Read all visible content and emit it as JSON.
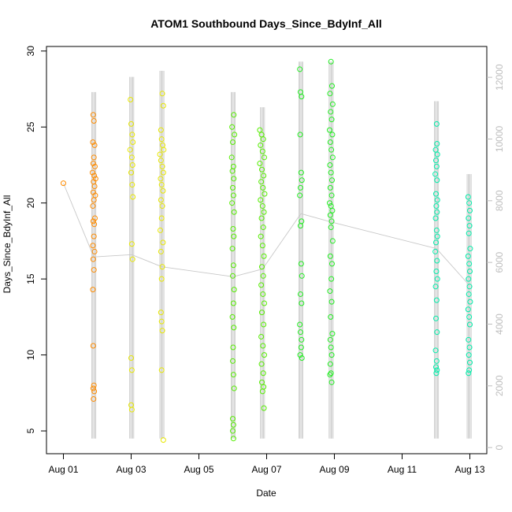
{
  "chart_data": {
    "type": "scatter",
    "title": "ATOM1 Southbound Days_Since_BdyInf_All",
    "xlabel": "Date",
    "ylabel": "Days_Since_BdyInf_All",
    "x_ticks": [
      "Aug 01",
      "Aug 03",
      "Aug 05",
      "Aug 07",
      "Aug 09",
      "Aug 11",
      "Aug 13"
    ],
    "xlim": [
      "2023-07-31T12:00",
      "2023-08-13T12:00"
    ],
    "ylim": [
      3.5,
      30.3
    ],
    "y_ticks": [
      5,
      10,
      15,
      20,
      25,
      30
    ],
    "y2lim": [
      -200,
      13000
    ],
    "y2_ticks": [
      0,
      2000,
      4000,
      6000,
      8000,
      10000,
      12000
    ],
    "y2_color": "#bebebe",
    "line_color": "#c8c8c8",
    "grid": false,
    "series": [
      {
        "color": "#ff8c00",
        "x": "2023-08-01",
        "points": [
          [
            0.0,
            21.3
          ],
          [
            0.88,
            25.8
          ],
          [
            0.9,
            25.4
          ],
          [
            0.87,
            24.0
          ],
          [
            0.92,
            23.8
          ],
          [
            0.9,
            23.0
          ],
          [
            0.88,
            22.6
          ],
          [
            0.93,
            22.4
          ],
          [
            0.86,
            22.0
          ],
          [
            0.91,
            21.8
          ],
          [
            0.95,
            21.6
          ],
          [
            0.89,
            21.4
          ],
          [
            0.92,
            21.1
          ],
          [
            0.88,
            20.7
          ],
          [
            0.94,
            20.5
          ],
          [
            0.9,
            20.2
          ],
          [
            0.87,
            19.8
          ],
          [
            0.93,
            19.0
          ],
          [
            0.88,
            18.8
          ],
          [
            0.91,
            18.6
          ],
          [
            0.9,
            17.8
          ],
          [
            0.87,
            17.2
          ],
          [
            0.92,
            16.8
          ],
          [
            0.88,
            16.3
          ],
          [
            0.9,
            15.6
          ],
          [
            0.87,
            14.3
          ],
          [
            0.88,
            10.6
          ],
          [
            0.9,
            8.0
          ],
          [
            0.88,
            7.8
          ],
          [
            0.91,
            7.6
          ],
          [
            0.89,
            7.1
          ]
        ]
      },
      {
        "color": "#e8e800",
        "x": "2023-08-03",
        "points": [
          [
            -0.02,
            26.8
          ],
          [
            0.0,
            25.2
          ],
          [
            0.03,
            24.5
          ],
          [
            0.05,
            24.0
          ],
          [
            -0.03,
            23.5
          ],
          [
            0.02,
            23.0
          ],
          [
            0.04,
            22.5
          ],
          [
            0.0,
            22.0
          ],
          [
            0.03,
            21.2
          ],
          [
            0.05,
            20.4
          ],
          [
            0.02,
            17.3
          ],
          [
            0.04,
            16.3
          ],
          [
            0.0,
            9.8
          ],
          [
            0.02,
            9.0
          ],
          [
            0.0,
            6.7
          ],
          [
            0.02,
            6.4
          ],
          [
            0.92,
            27.2
          ],
          [
            0.95,
            26.4
          ],
          [
            0.88,
            24.8
          ],
          [
            0.9,
            24.2
          ],
          [
            0.93,
            23.8
          ],
          [
            0.96,
            23.5
          ],
          [
            0.85,
            23.2
          ],
          [
            0.88,
            22.8
          ],
          [
            0.92,
            22.4
          ],
          [
            0.95,
            22.0
          ],
          [
            0.87,
            21.6
          ],
          [
            0.9,
            21.2
          ],
          [
            0.94,
            20.8
          ],
          [
            0.88,
            20.2
          ],
          [
            0.92,
            19.8
          ],
          [
            0.9,
            19.0
          ],
          [
            0.86,
            18.2
          ],
          [
            0.94,
            17.4
          ],
          [
            0.88,
            16.8
          ],
          [
            0.92,
            15.8
          ],
          [
            0.9,
            15.0
          ],
          [
            0.88,
            12.8
          ],
          [
            0.9,
            12.2
          ],
          [
            0.92,
            11.6
          ],
          [
            0.9,
            9.0
          ],
          [
            0.95,
            4.4
          ]
        ]
      },
      {
        "color": "#55ee00",
        "x": "2023-08-06",
        "points": [
          [
            -0.02,
            25.0
          ],
          [
            0.03,
            25.8
          ],
          [
            0.05,
            24.5
          ],
          [
            0.0,
            24.0
          ],
          [
            -0.03,
            23.0
          ],
          [
            0.02,
            22.4
          ],
          [
            -0.01,
            22.1
          ],
          [
            0.03,
            21.6
          ],
          [
            0.0,
            21.0
          ],
          [
            0.02,
            20.5
          ],
          [
            -0.02,
            20.0
          ],
          [
            0.04,
            19.4
          ],
          [
            0.01,
            18.3
          ],
          [
            0.03,
            17.8
          ],
          [
            -0.01,
            17.0
          ],
          [
            0.02,
            15.9
          ],
          [
            0.0,
            15.2
          ],
          [
            0.04,
            14.3
          ],
          [
            0.02,
            13.4
          ],
          [
            -0.01,
            12.5
          ],
          [
            0.03,
            11.8
          ],
          [
            0.01,
            10.5
          ],
          [
            0.0,
            9.6
          ],
          [
            0.02,
            8.7
          ],
          [
            0.04,
            7.8
          ],
          [
            0.0,
            5.8
          ],
          [
            0.02,
            5.4
          ],
          [
            0.0,
            5.0
          ],
          [
            0.02,
            4.5
          ],
          [
            0.8,
            24.8
          ],
          [
            0.85,
            24.5
          ],
          [
            0.9,
            24.2
          ],
          [
            0.82,
            23.8
          ],
          [
            0.88,
            23.4
          ],
          [
            0.93,
            23.0
          ],
          [
            0.8,
            22.6
          ],
          [
            0.86,
            22.2
          ],
          [
            0.91,
            21.8
          ],
          [
            0.84,
            21.4
          ],
          [
            0.89,
            21.0
          ],
          [
            0.94,
            20.6
          ],
          [
            0.82,
            20.2
          ],
          [
            0.88,
            19.8
          ],
          [
            0.92,
            19.4
          ],
          [
            0.85,
            19.0
          ],
          [
            0.9,
            18.4
          ],
          [
            0.83,
            17.8
          ],
          [
            0.88,
            17.2
          ],
          [
            0.92,
            16.5
          ],
          [
            0.86,
            15.8
          ],
          [
            0.9,
            15.2
          ],
          [
            0.84,
            14.6
          ],
          [
            0.89,
            14.0
          ],
          [
            0.93,
            13.4
          ],
          [
            0.86,
            12.8
          ],
          [
            0.91,
            12.0
          ],
          [
            0.84,
            11.2
          ],
          [
            0.89,
            10.6
          ],
          [
            0.93,
            10.0
          ],
          [
            0.85,
            9.4
          ],
          [
            0.9,
            8.8
          ],
          [
            0.86,
            8.2
          ],
          [
            0.91,
            7.9
          ],
          [
            0.88,
            7.6
          ],
          [
            0.92,
            6.5
          ]
        ]
      },
      {
        "color": "#22ee22",
        "x": "2023-08-08",
        "points": [
          [
            -0.02,
            28.8
          ],
          [
            0.0,
            27.3
          ],
          [
            0.03,
            27.0
          ],
          [
            -0.01,
            24.5
          ],
          [
            0.02,
            22.0
          ],
          [
            0.04,
            21.5
          ],
          [
            0.0,
            21.0
          ],
          [
            -0.02,
            20.5
          ],
          [
            0.03,
            18.8
          ],
          [
            0.0,
            18.5
          ],
          [
            0.02,
            16.0
          ],
          [
            0.04,
            15.2
          ],
          [
            0.0,
            14.0
          ],
          [
            0.03,
            13.4
          ],
          [
            -0.02,
            12.0
          ],
          [
            0.0,
            11.5
          ],
          [
            0.03,
            11.0
          ],
          [
            0.02,
            10.5
          ],
          [
            -0.01,
            10.0
          ],
          [
            0.04,
            9.8
          ],
          [
            0.9,
            29.3
          ],
          [
            0.93,
            27.7
          ],
          [
            0.87,
            27.2
          ],
          [
            0.95,
            26.5
          ],
          [
            0.89,
            26.0
          ],
          [
            0.92,
            25.5
          ],
          [
            0.86,
            24.8
          ],
          [
            0.94,
            24.5
          ],
          [
            0.88,
            24.0
          ],
          [
            0.91,
            23.5
          ],
          [
            0.95,
            23.0
          ],
          [
            0.87,
            22.5
          ],
          [
            0.9,
            22.0
          ],
          [
            0.93,
            21.5
          ],
          [
            0.88,
            21.0
          ],
          [
            0.92,
            20.5
          ],
          [
            0.86,
            20.0
          ],
          [
            0.9,
            19.8
          ],
          [
            0.94,
            19.5
          ],
          [
            0.88,
            19.2
          ],
          [
            0.92,
            18.8
          ],
          [
            0.9,
            18.4
          ],
          [
            0.95,
            17.5
          ],
          [
            0.88,
            16.5
          ],
          [
            0.93,
            16.0
          ],
          [
            0.91,
            15.0
          ],
          [
            0.87,
            14.2
          ],
          [
            0.92,
            13.5
          ],
          [
            0.89,
            12.5
          ],
          [
            0.94,
            11.4
          ],
          [
            0.88,
            11.0
          ],
          [
            0.9,
            10.5
          ],
          [
            0.92,
            10.0
          ],
          [
            0.88,
            9.4
          ],
          [
            0.9,
            8.8
          ],
          [
            0.87,
            8.7
          ],
          [
            0.92,
            8.2
          ]
        ]
      },
      {
        "color": "#00eeaa",
        "x": "2023-08-12",
        "points": [
          [
            0.02,
            25.2
          ],
          [
            0.03,
            23.9
          ],
          [
            -0.01,
            23.5
          ],
          [
            0.04,
            23.2
          ],
          [
            0.0,
            22.8
          ],
          [
            0.02,
            22.4
          ],
          [
            -0.02,
            21.9
          ],
          [
            0.03,
            21.5
          ],
          [
            0.0,
            20.6
          ],
          [
            0.04,
            20.2
          ],
          [
            0.01,
            19.8
          ],
          [
            0.03,
            19.4
          ],
          [
            -0.01,
            19.0
          ],
          [
            0.02,
            18.2
          ],
          [
            0.04,
            17.8
          ],
          [
            0.0,
            17.4
          ],
          [
            -0.02,
            16.8
          ],
          [
            0.03,
            16.2
          ],
          [
            0.01,
            15.5
          ],
          [
            0.04,
            15.0
          ],
          [
            -0.01,
            14.5
          ],
          [
            0.02,
            13.6
          ],
          [
            0.0,
            12.4
          ],
          [
            0.03,
            11.5
          ],
          [
            -0.01,
            10.3
          ],
          [
            0.02,
            9.6
          ],
          [
            0.0,
            9.2
          ],
          [
            0.03,
            9.0
          ],
          [
            0.01,
            8.8
          ],
          [
            0.95,
            20.4
          ],
          [
            0.98,
            20.0
          ],
          [
            1.0,
            19.5
          ],
          [
            0.96,
            19.0
          ],
          [
            0.99,
            18.5
          ],
          [
            0.97,
            18.0
          ],
          [
            1.01,
            17.0
          ],
          [
            0.95,
            16.5
          ],
          [
            0.98,
            16.0
          ],
          [
            1.0,
            15.5
          ],
          [
            0.96,
            15.0
          ],
          [
            0.99,
            14.5
          ],
          [
            0.97,
            14.0
          ],
          [
            1.01,
            13.5
          ],
          [
            0.95,
            13.0
          ],
          [
            0.98,
            12.5
          ],
          [
            1.0,
            12.0
          ],
          [
            0.96,
            11.0
          ],
          [
            0.99,
            10.5
          ],
          [
            0.97,
            10.0
          ],
          [
            1.0,
            9.5
          ],
          [
            0.98,
            9.0
          ],
          [
            0.96,
            8.8
          ]
        ]
      }
    ]
  }
}
